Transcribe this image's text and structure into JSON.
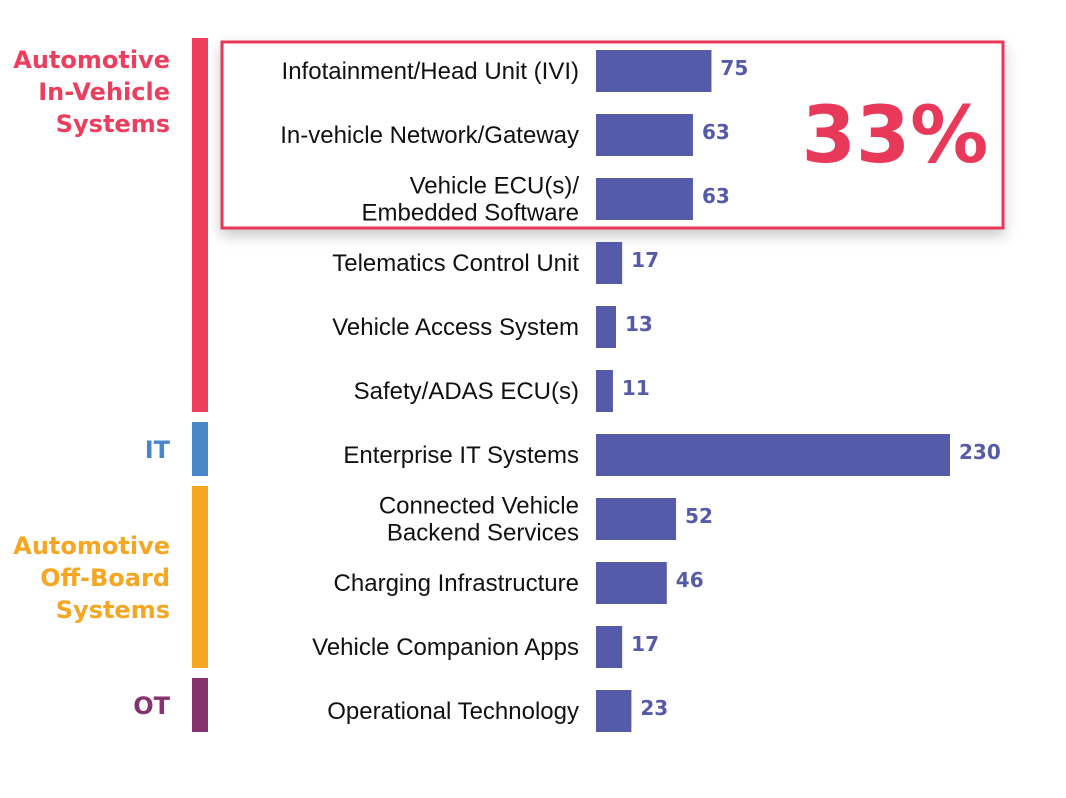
{
  "chart_data": {
    "type": "bar",
    "orientation": "horizontal",
    "colors": {
      "bar": "#555ba8",
      "value_text": "#555ba8",
      "highlight": "#e8395a"
    },
    "groups": [
      {
        "name": "Automotive In-Vehicle Systems",
        "lines": [
          "Automotive",
          "In-Vehicle",
          "Systems"
        ],
        "color": "#ee3e5e",
        "categories": [
          0,
          1,
          2,
          3,
          4,
          5
        ]
      },
      {
        "name": "IT",
        "lines": [
          "IT"
        ],
        "color": "#4a86c8",
        "categories": [
          6
        ]
      },
      {
        "name": "Automotive Off-Board Systems",
        "lines": [
          "Automotive",
          "Off-Board",
          "Systems"
        ],
        "color": "#f5a623",
        "categories": [
          7,
          8,
          9
        ]
      },
      {
        "name": "OT",
        "lines": [
          "OT"
        ],
        "color": "#86326e",
        "categories": [
          10
        ]
      }
    ],
    "categories": [
      [
        "Infotainment/Head Unit (IVI)"
      ],
      [
        "In-vehicle Network/Gateway"
      ],
      [
        "Vehicle ECU(s)/",
        "Embedded Software"
      ],
      [
        "Telematics Control Unit"
      ],
      [
        "Vehicle Access System"
      ],
      [
        "Safety/ADAS ECU(s)"
      ],
      [
        "Enterprise IT Systems"
      ],
      [
        "Connected Vehicle",
        "Backend Services"
      ],
      [
        "Charging Infrastructure"
      ],
      [
        "Vehicle Companion Apps"
      ],
      [
        "Operational Technology"
      ]
    ],
    "values": [
      75,
      63,
      63,
      17,
      13,
      11,
      230,
      52,
      46,
      17,
      23
    ],
    "xlim": [
      0,
      230
    ],
    "highlight": {
      "categories": [
        0,
        1,
        2
      ],
      "label": "33%"
    }
  }
}
